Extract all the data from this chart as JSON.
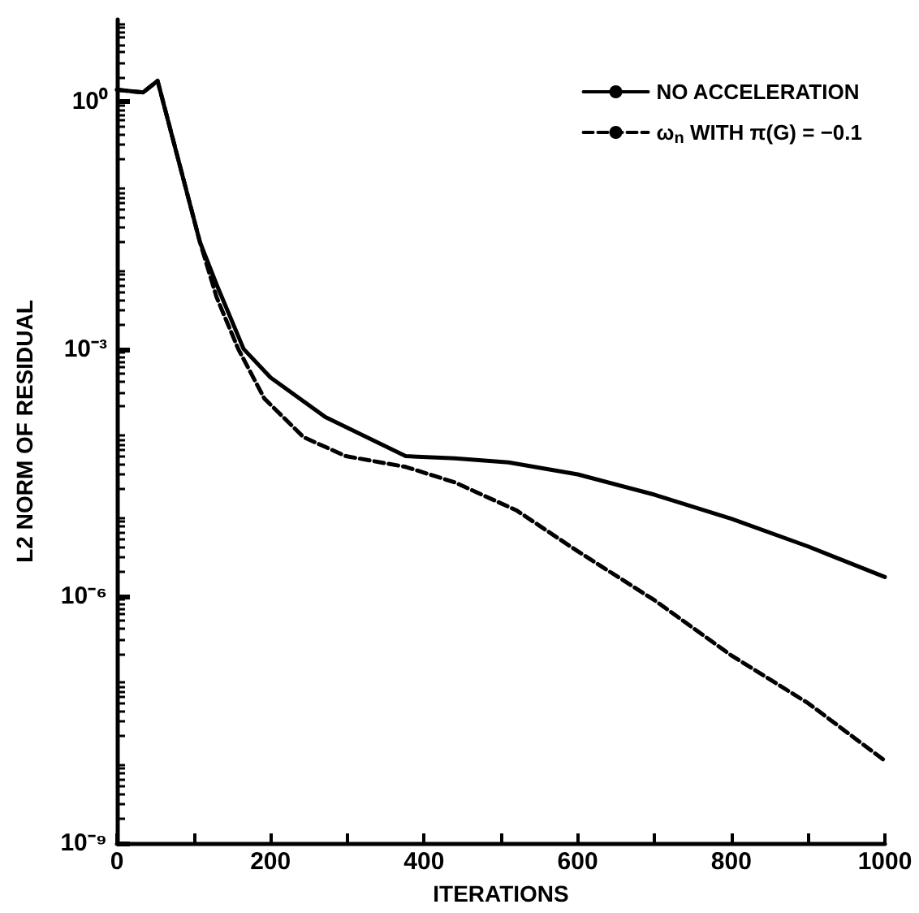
{
  "chart_data": {
    "type": "line",
    "xlabel": "ITERATIONS",
    "ylabel": "L2 NORM OF RESIDUAL",
    "log": "y",
    "grid": false,
    "legend": "top right",
    "marker": "none",
    "xlim": [
      0,
      1000
    ],
    "ylim": [
      1e-09,
      10
    ],
    "xticks": [
      0,
      {
        "value": 100,
        "label": null
      },
      200,
      {
        "value": 300,
        "label": null
      },
      400,
      {
        "value": 500,
        "label": null
      },
      600,
      {
        "value": 700,
        "label": null
      },
      800,
      {
        "value": 900,
        "label": null
      },
      1000
    ],
    "yticks": [
      {
        "value": 1,
        "label": "10⁰"
      },
      {
        "value": 0.001,
        "label": "10⁻³"
      },
      {
        "value": 1e-06,
        "label": "10⁻⁶"
      },
      {
        "value": 1e-09,
        "label": "10⁻⁹"
      }
    ],
    "series": [
      {
        "name": "NO ACCELERATION",
        "color": "#000000",
        "line_style": "solid",
        "x": [
          0,
          34,
          53,
          108,
          130,
          165,
          200,
          271,
          376,
          440,
          510,
          600,
          700,
          800,
          900,
          1000
        ],
        "values": [
          1.4,
          1.3,
          1.8,
          0.02,
          0.006,
          0.001,
          0.00045,
          0.00015,
          5e-05,
          4.7e-05,
          4.2e-05,
          3e-05,
          1.7e-05,
          8.7e-06,
          4e-06,
          1.7e-06
        ]
      },
      {
        "name": "ω$_{n}$ WITH π(G) = −0.1",
        "color": "#000000",
        "line_style": "dashed",
        "x": [
          0,
          34,
          53,
          108,
          130,
          158,
          192,
          243,
          298,
          376,
          440,
          520,
          600,
          700,
          800,
          900,
          1000
        ],
        "values": [
          1.4,
          1.3,
          1.8,
          0.02,
          0.0042,
          0.001,
          0.00025,
          8.5e-05,
          5e-05,
          3.7e-05,
          2.4e-05,
          1.1e-05,
          3.5e-06,
          8.9e-07,
          1.9e-07,
          5e-08,
          1e-08
        ]
      }
    ]
  }
}
